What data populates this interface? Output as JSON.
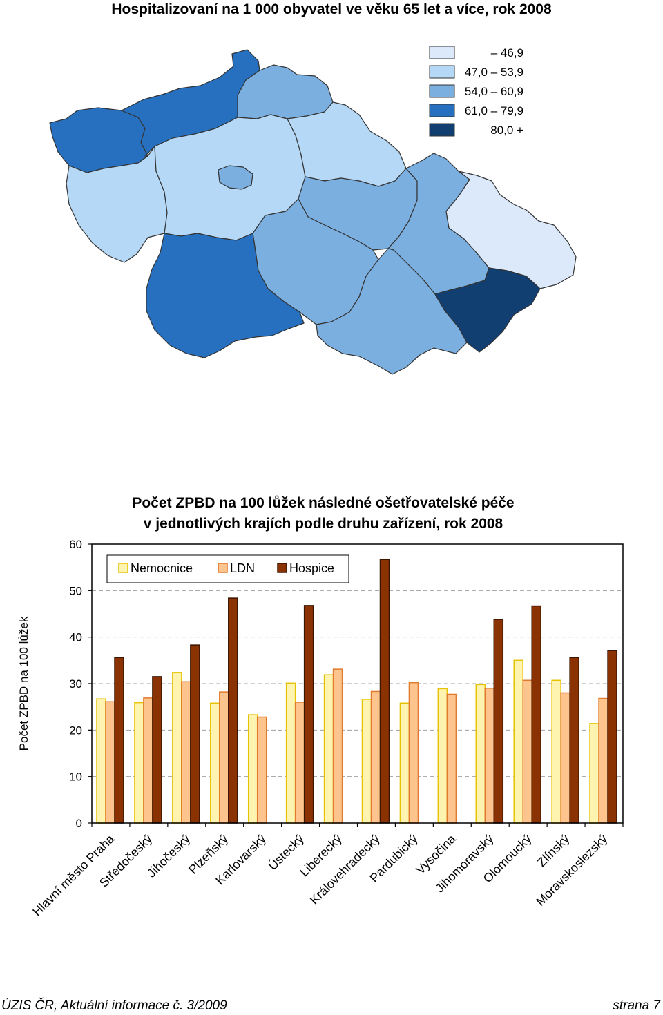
{
  "map": {
    "title": "Hospitalizovaní na 1 000 obyvatel ve věku 65 let a více, rok 2008",
    "legend": [
      {
        "label": "– 46,9",
        "color": "#dbe9fb"
      },
      {
        "label": "47,0 – 53,9",
        "color": "#b4d8f5"
      },
      {
        "label": "54,0 – 60,9",
        "color": "#7bafe0"
      },
      {
        "label": "61,0 – 79,9",
        "color": "#2670bf"
      },
      {
        "label": "80,0 +",
        "color": "#123f72"
      }
    ]
  },
  "chart_data": {
    "type": "bar",
    "title_line1": "Počet ZPBD na 100 lůžek následné ošetřovatelské péče",
    "title_line2": "v jednotlivých krajích podle druhu zařízení, rok 2008",
    "ylabel": "Počet ZPBD na 100 lůžek",
    "ylim": [
      0,
      60
    ],
    "yticks": [
      "0",
      "10",
      "20",
      "30",
      "40",
      "50",
      "60"
    ],
    "grid": "dashed-horizontal",
    "legend_position": "top-left",
    "categories": [
      "Hlavní město Praha",
      "Středočeský",
      "Jihočeský",
      "Plzeňský",
      "Karlovarský",
      "Ústecký",
      "Liberecký",
      "Královehradecký",
      "Pardubický",
      "Vysočina",
      "Jihomoravský",
      "Olomoucký",
      "Zlínský",
      "Moravskoslezský"
    ],
    "series": [
      {
        "name": "Nemocnice",
        "color": "#fff3b0",
        "stroke": "#e6c200",
        "values": [
          26.7,
          25.9,
          32.4,
          25.8,
          23.3,
          30.1,
          31.9,
          26.6,
          25.8,
          28.9,
          29.8,
          35.0,
          30.7,
          21.4
        ]
      },
      {
        "name": "LDN",
        "color": "#fdc48e",
        "stroke": "#e07a2c",
        "values": [
          26.1,
          26.9,
          30.4,
          28.2,
          22.8,
          26.0,
          33.1,
          28.3,
          30.2,
          27.7,
          29.0,
          30.7,
          28.0,
          26.8
        ]
      },
      {
        "name": "Hospice",
        "color": "#8b3203",
        "stroke": "#3a1500",
        "values": [
          35.6,
          31.5,
          38.3,
          48.4,
          null,
          46.8,
          null,
          56.7,
          null,
          null,
          43.8,
          46.7,
          35.6,
          37.1
        ]
      }
    ]
  },
  "footer": {
    "left": "ÚZIS ČR, Aktuální informace č. 3/2009",
    "right": "strana 7"
  }
}
